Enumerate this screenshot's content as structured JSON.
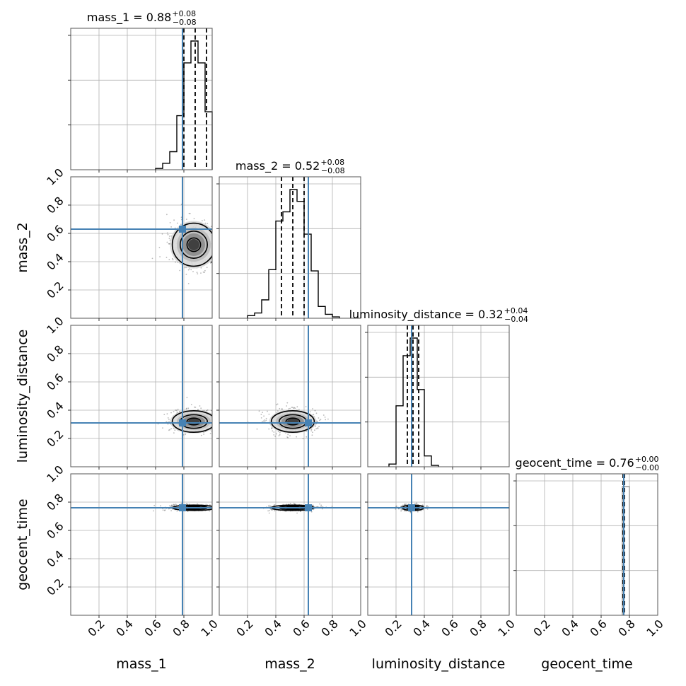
{
  "chart_data": {
    "type": "corner",
    "parameters": [
      "mass_1",
      "mass_2",
      "luminosity_distance",
      "geocent_time"
    ],
    "titles": [
      {
        "label": "mass_1 = 0.88",
        "plus": "+0.08",
        "minus": "−0.08"
      },
      {
        "label": "mass_2 = 0.52",
        "plus": "+0.08",
        "minus": "−0.08"
      },
      {
        "label": "luminosity_distance = 0.32",
        "plus": "+0.04",
        "minus": "−0.04"
      },
      {
        "label": "geocent_time = 0.76",
        "plus": "+0.00",
        "minus": "−0.00"
      }
    ],
    "axis_range": [
      0,
      1
    ],
    "tick_values": [
      0.2,
      0.4,
      0.6,
      0.8,
      1.0
    ],
    "tick_labels": [
      "0.2",
      "0.4",
      "0.6",
      "0.8",
      "1.0"
    ],
    "truth_values": [
      0.79,
      0.63,
      0.31,
      0.76
    ],
    "truth_color": "#4682b4",
    "quantiles": [
      [
        0.8,
        0.88,
        0.96
      ],
      [
        0.44,
        0.52,
        0.6
      ],
      [
        0.28,
        0.32,
        0.36
      ],
      [
        0.755,
        0.76,
        0.765
      ]
    ],
    "histograms": [
      {
        "bin_edges": [
          0.6,
          0.65,
          0.7,
          0.75,
          0.8,
          0.85,
          0.9,
          0.95,
          1.0
        ],
        "counts": [
          0.01,
          0.05,
          0.14,
          0.42,
          0.83,
          1.0,
          0.83,
          0.45
        ]
      },
      {
        "bin_edges": [
          0.2,
          0.25,
          0.3,
          0.35,
          0.4,
          0.45,
          0.5,
          0.55,
          0.6,
          0.65,
          0.7,
          0.75,
          0.8,
          0.85
        ],
        "counts": [
          0.02,
          0.04,
          0.14,
          0.37,
          0.74,
          0.81,
          0.98,
          0.89,
          0.64,
          0.36,
          0.09,
          0.03,
          0.01
        ]
      },
      {
        "bin_edges": [
          0.15,
          0.2,
          0.25,
          0.3,
          0.35,
          0.4,
          0.45,
          0.5
        ],
        "counts": [
          0.02,
          0.45,
          0.82,
          0.95,
          0.57,
          0.08,
          0.01
        ]
      },
      {
        "bin_edges": [
          0.75,
          0.8
        ],
        "counts": [
          0.995
        ]
      }
    ],
    "contours_2d": [
      {
        "row": 1,
        "col": 0,
        "center": [
          0.87,
          0.52
        ],
        "spread": [
          0.08,
          0.08
        ]
      },
      {
        "row": 2,
        "col": 0,
        "center": [
          0.87,
          0.32
        ],
        "spread": [
          0.08,
          0.04
        ]
      },
      {
        "row": 2,
        "col": 1,
        "center": [
          0.52,
          0.32
        ],
        "spread": [
          0.08,
          0.04
        ]
      },
      {
        "row": 3,
        "col": 0,
        "center": [
          0.87,
          0.76
        ],
        "spread": [
          0.08,
          0.01
        ]
      },
      {
        "row": 3,
        "col": 1,
        "center": [
          0.52,
          0.76
        ],
        "spread": [
          0.08,
          0.01
        ]
      },
      {
        "row": 3,
        "col": 2,
        "center": [
          0.32,
          0.76
        ],
        "spread": [
          0.04,
          0.01
        ]
      }
    ],
    "grid": true
  }
}
